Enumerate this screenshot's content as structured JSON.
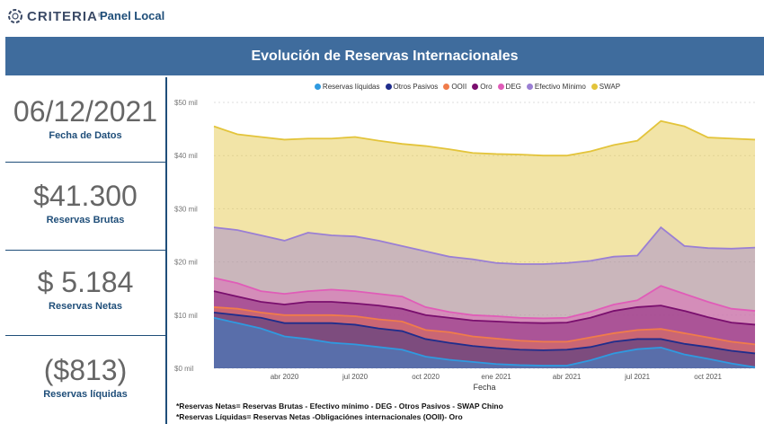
{
  "header": {
    "logo_text": "CRITERIA",
    "panel_title": "Panel Local"
  },
  "banner": {
    "title": "Evolución de Reservas Internacionales"
  },
  "kpis": [
    {
      "value": "06/12/2021",
      "label": "Fecha de Datos"
    },
    {
      "value": "$41.300",
      "label": "Reservas Brutas"
    },
    {
      "value": "$ 5.184",
      "label": "Reservas Netas"
    },
    {
      "value": "($813)",
      "label": "Reservas líquidas"
    }
  ],
  "notes": [
    "*Reservas Netas= Reservas Brutas - Efectivo mínimo - DEG - Otros Pasivos - SWAP Chino",
    "*Reservas Líquidas= Reservas Netas -Obligaciónes internacionales (OOII)- Oro"
  ],
  "chart_data": {
    "type": "area",
    "xlabel": "Fecha",
    "ylabel": "",
    "x_ticks": [
      "abr 2020",
      "jul 2020",
      "oct 2020",
      "ene 2021",
      "abr 2021",
      "jul 2021",
      "oct 2021"
    ],
    "y_ticks": [
      "$0 mil",
      "$10 mil",
      "$20 mil",
      "$30 mil",
      "$40 mil",
      "$50 mil"
    ],
    "ylim": [
      0,
      50
    ],
    "legend_position": "top",
    "x": [
      "2020-01",
      "2020-02",
      "2020-03",
      "2020-04",
      "2020-05",
      "2020-06",
      "2020-07",
      "2020-08",
      "2020-09",
      "2020-10",
      "2020-11",
      "2020-12",
      "2021-01",
      "2021-02",
      "2021-03",
      "2021-04",
      "2021-05",
      "2021-06",
      "2021-07",
      "2021-08",
      "2021-09",
      "2021-10",
      "2021-11",
      "2021-12"
    ],
    "series": [
      {
        "name": "Reservas líquidas",
        "color": "#2f9ae0",
        "values": [
          9.5,
          8.5,
          7.5,
          6.0,
          5.5,
          4.8,
          4.5,
          4.0,
          3.5,
          2.2,
          1.6,
          1.2,
          0.8,
          0.6,
          0.5,
          0.5,
          1.5,
          2.8,
          3.6,
          3.9,
          2.6,
          1.8,
          0.9,
          0.2
        ]
      },
      {
        "name": "Otros Pasivos",
        "color": "#1f2d8c",
        "values": [
          10.5,
          10.0,
          9.5,
          8.5,
          8.5,
          8.5,
          8.2,
          7.5,
          7.0,
          5.5,
          4.8,
          4.2,
          3.8,
          3.5,
          3.4,
          3.5,
          4.0,
          5.0,
          5.5,
          5.5,
          4.6,
          4.0,
          3.3,
          2.8
        ]
      },
      {
        "name": "OOII",
        "color": "#f07c4a",
        "values": [
          11.5,
          11.2,
          10.5,
          10.0,
          10.0,
          10.0,
          9.8,
          9.2,
          8.8,
          7.2,
          6.8,
          6.0,
          5.6,
          5.2,
          5.0,
          5.0,
          5.8,
          6.6,
          7.2,
          7.4,
          6.6,
          5.8,
          5.0,
          4.5
        ]
      },
      {
        "name": "Oro",
        "color": "#7a0f6e",
        "values": [
          14.5,
          13.5,
          12.5,
          12.0,
          12.5,
          12.5,
          12.2,
          11.8,
          11.2,
          10.0,
          9.5,
          9.0,
          8.8,
          8.6,
          8.5,
          8.6,
          9.5,
          10.8,
          11.5,
          11.8,
          10.8,
          9.6,
          8.6,
          8.2
        ]
      },
      {
        "name": "DEG",
        "color": "#e05cb8",
        "values": [
          17.0,
          16.0,
          14.5,
          14.0,
          14.5,
          14.8,
          14.5,
          14.0,
          13.5,
          11.5,
          10.6,
          10.0,
          9.8,
          9.5,
          9.4,
          9.5,
          10.6,
          12.0,
          12.8,
          15.5,
          14.0,
          12.5,
          11.2,
          10.8
        ]
      },
      {
        "name": "Efectivo Mínimo",
        "color": "#9a7fd4",
        "values": [
          26.5,
          26.0,
          25.0,
          24.0,
          25.5,
          25.0,
          24.8,
          24.0,
          23.0,
          22.0,
          21.0,
          20.5,
          19.8,
          19.6,
          19.6,
          19.8,
          20.2,
          21.0,
          21.2,
          26.5,
          23.0,
          22.6,
          22.5,
          22.7
        ]
      },
      {
        "name": "SWAP",
        "color": "#e3c43b",
        "values": [
          45.5,
          44.0,
          43.5,
          43.0,
          43.2,
          43.2,
          43.5,
          42.8,
          42.2,
          41.8,
          41.2,
          40.5,
          40.3,
          40.2,
          40.0,
          40.0,
          40.8,
          42.0,
          42.8,
          46.5,
          45.5,
          43.4,
          43.2,
          43.0
        ]
      }
    ]
  }
}
